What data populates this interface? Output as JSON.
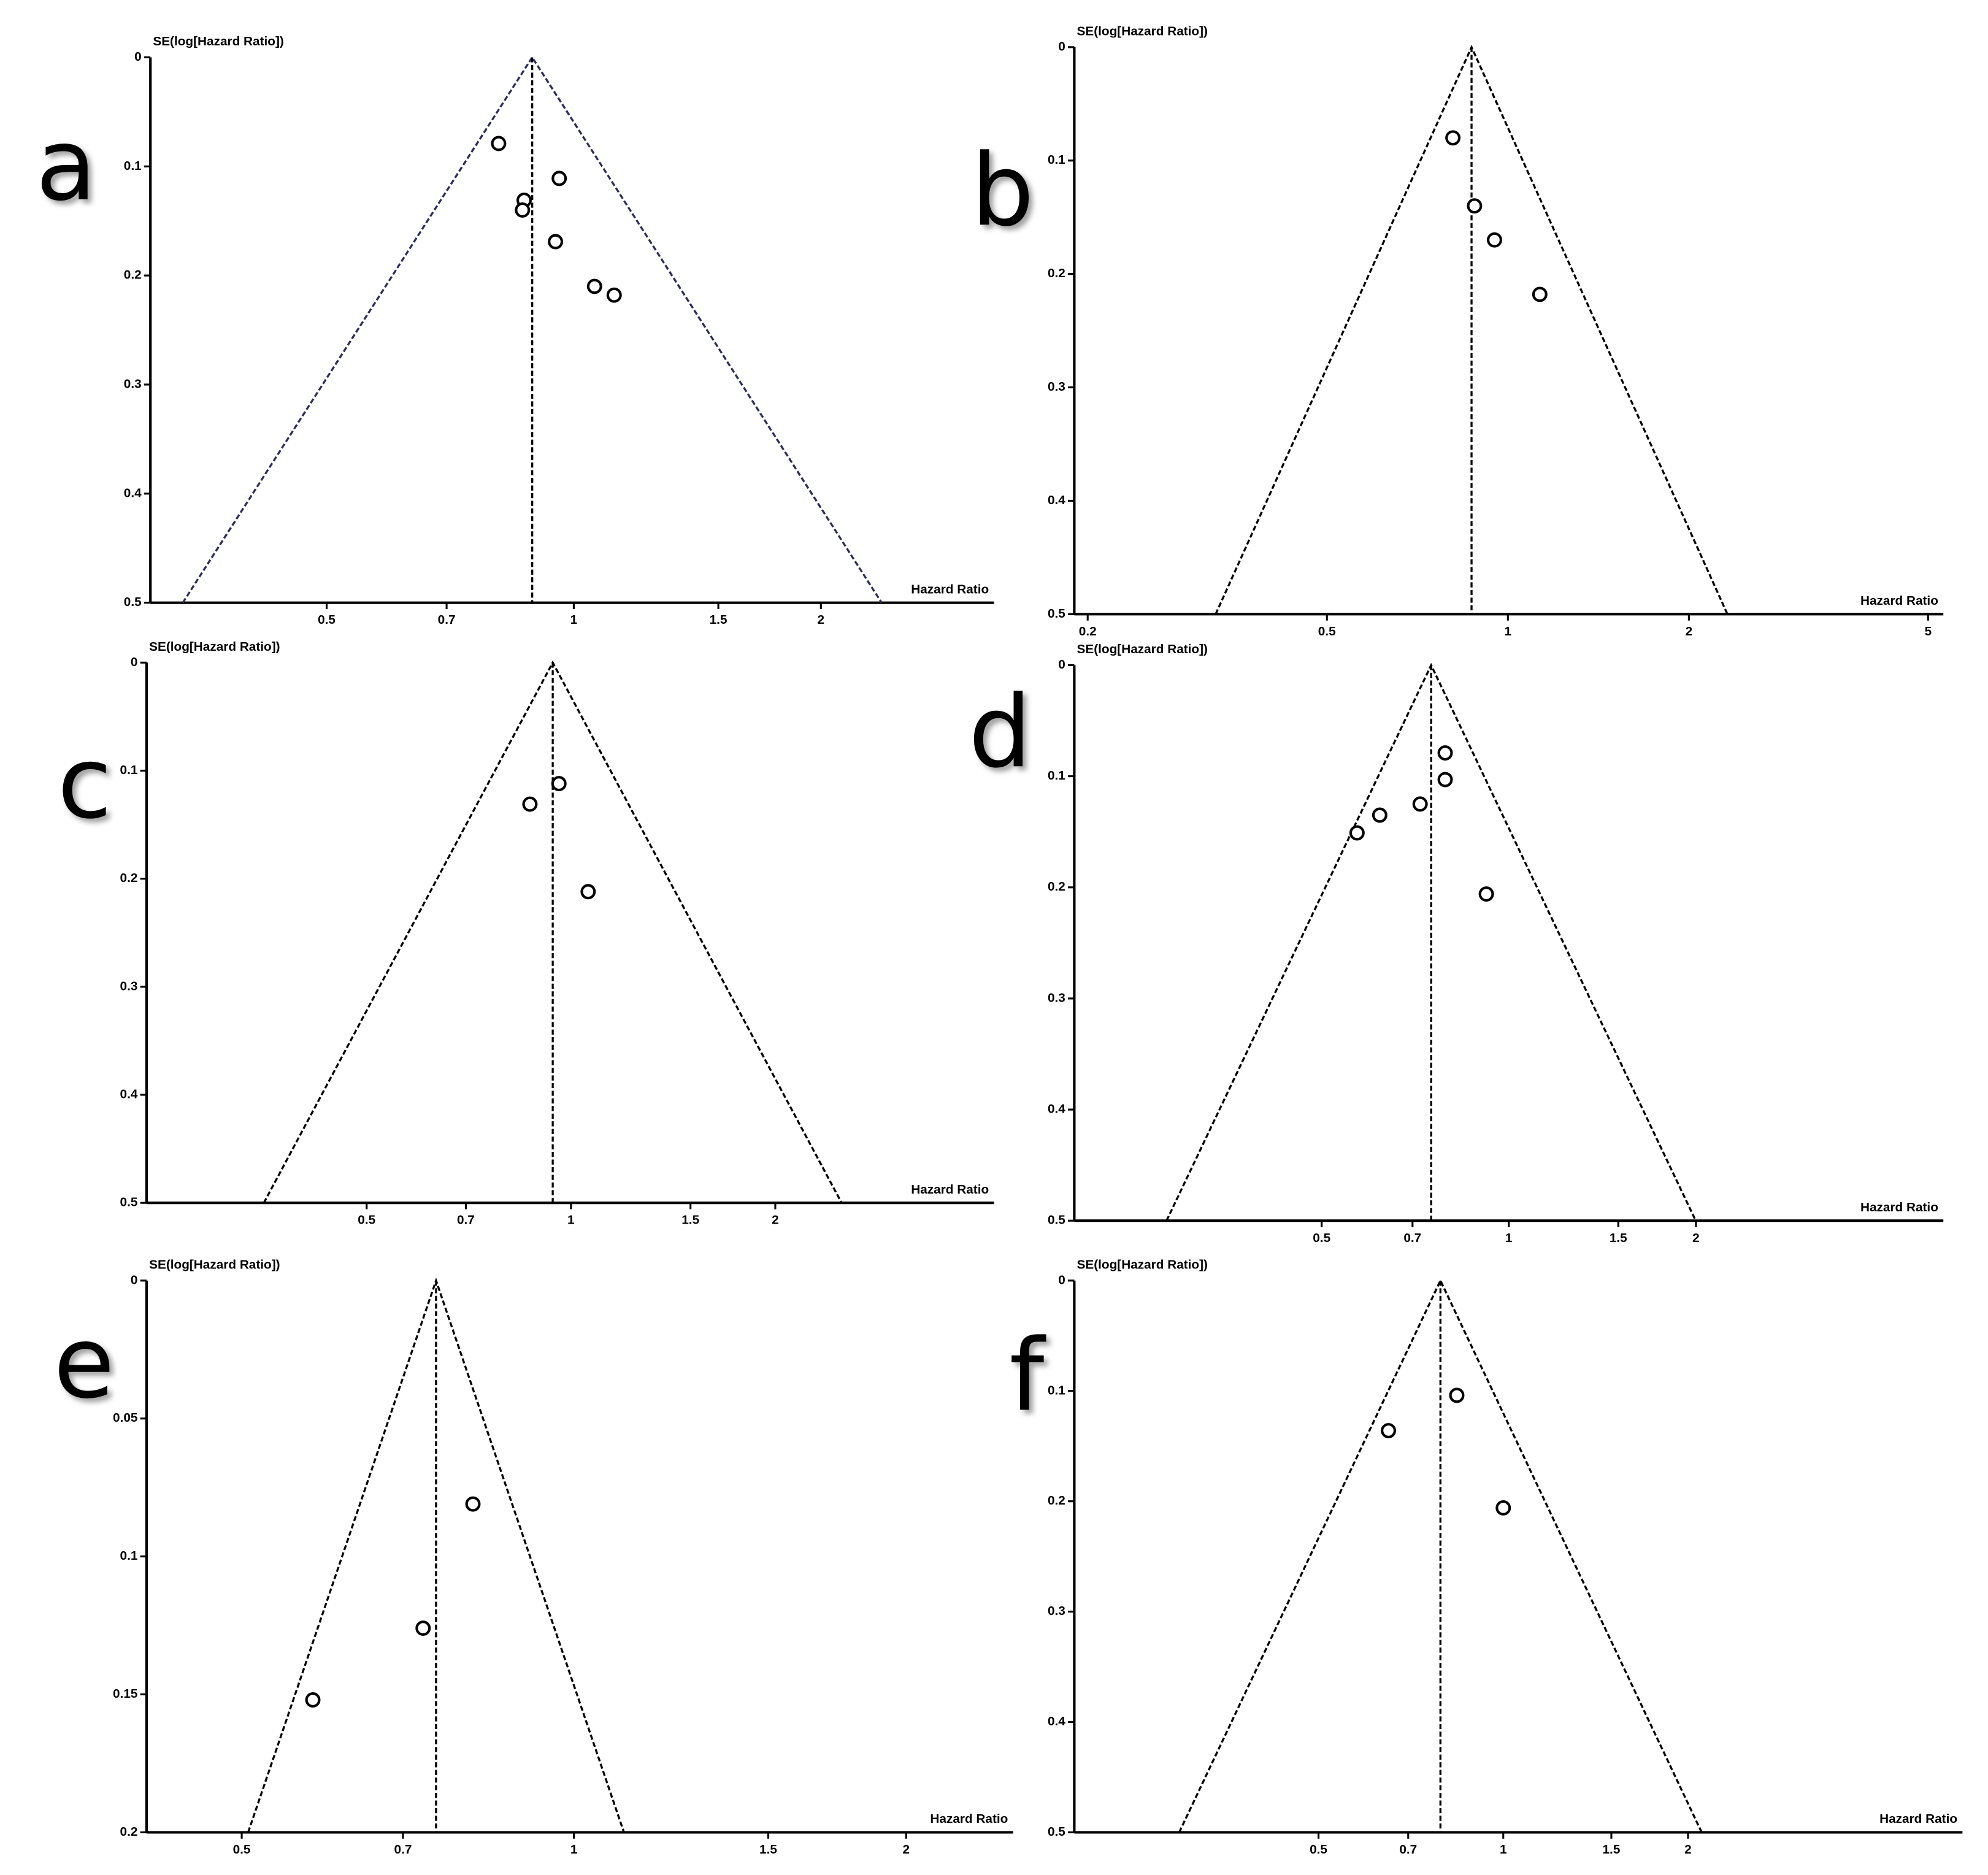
{
  "chart_data": [
    {
      "type": "funnel",
      "panel": "a",
      "y_label": "SE(log[Hazard Ratio])",
      "x_label": "Hazard Ratio",
      "x_log": true,
      "y_inverted": true,
      "xlim": [
        0.305,
        3.25
      ],
      "xticks": [
        0.5,
        0.7,
        1,
        1.5,
        2
      ],
      "ylim": [
        0,
        0.5
      ],
      "yticks": [
        0,
        0.1,
        0.2,
        0.3,
        0.4,
        0.5
      ],
      "summary": 0.89,
      "color": "#2d2d5c",
      "x": [
        0.81,
        0.87,
        0.866,
        0.96,
        0.95,
        1.06,
        1.12
      ],
      "y": [
        0.079,
        0.131,
        0.14,
        0.111,
        0.169,
        0.21,
        0.218
      ]
    },
    {
      "type": "funnel",
      "panel": "b",
      "y_label": "SE(log[Hazard Ratio])",
      "x_label": "Hazard Ratio",
      "x_log": true,
      "y_inverted": true,
      "xlim": [
        0.19,
        5.3
      ],
      "xticks": [
        0.2,
        0.5,
        1,
        2,
        5
      ],
      "ylim": [
        0,
        0.5
      ],
      "yticks": [
        0,
        0.1,
        0.2,
        0.3,
        0.4,
        0.5
      ],
      "summary": 0.87,
      "color": "#000000",
      "x": [
        0.81,
        0.88,
        0.95,
        1.13
      ],
      "y": [
        0.08,
        0.14,
        0.17,
        0.218
      ]
    },
    {
      "type": "funnel",
      "panel": "c",
      "y_label": "SE(log[Hazard Ratio])",
      "x_label": "Hazard Ratio",
      "x_log": true,
      "y_inverted": true,
      "xlim": [
        0.237,
        4.2
      ],
      "xticks": [
        0.5,
        0.7,
        1,
        1.5,
        2
      ],
      "ylim": [
        0,
        0.5
      ],
      "yticks": [
        0,
        0.1,
        0.2,
        0.3,
        0.4,
        0.5
      ],
      "summary": 0.94,
      "color": "#000000",
      "x": [
        0.87,
        0.96,
        1.06
      ],
      "y": [
        0.131,
        0.112,
        0.212
      ]
    },
    {
      "type": "funnel",
      "panel": "d",
      "y_label": "SE(log[Hazard Ratio])",
      "x_label": "Hazard Ratio",
      "x_log": true,
      "y_inverted": true,
      "xlim": [
        0.2,
        5.0
      ],
      "xticks": [
        0.5,
        0.7,
        1,
        1.5,
        2
      ],
      "ylim": [
        0,
        0.5
      ],
      "yticks": [
        0,
        0.1,
        0.2,
        0.3,
        0.4,
        0.5
      ],
      "summary": 0.75,
      "color": "#000000",
      "x": [
        0.79,
        0.79,
        0.72,
        0.62,
        0.57,
        0.92
      ],
      "y": [
        0.079,
        0.103,
        0.125,
        0.135,
        0.151,
        0.206
      ]
    },
    {
      "type": "funnel",
      "panel": "e",
      "y_label": "SE(log[Hazard Ratio])",
      "x_label": "Hazard Ratio",
      "x_log": true,
      "y_inverted": true,
      "xlim": [
        0.41,
        2.5
      ],
      "xticks": [
        0.5,
        0.7,
        1,
        1.5,
        2
      ],
      "ylim": [
        0,
        0.2
      ],
      "yticks": [
        0,
        0.05,
        0.1,
        0.15,
        0.2
      ],
      "summary": 0.75,
      "color": "#000000",
      "x": [
        0.81,
        0.73,
        0.58
      ],
      "y": [
        0.081,
        0.126,
        0.152
      ]
    },
    {
      "type": "funnel",
      "panel": "f",
      "y_label": "SE(log[Hazard Ratio])",
      "x_label": "Hazard Ratio",
      "x_log": true,
      "y_inverted": true,
      "xlim": [
        0.2,
        5.6
      ],
      "xticks": [
        0.5,
        0.7,
        1,
        1.5,
        2
      ],
      "ylim": [
        0,
        0.5
      ],
      "yticks": [
        0,
        0.1,
        0.2,
        0.3,
        0.4,
        0.5
      ],
      "summary": 0.79,
      "color": "#000000",
      "x": [
        0.84,
        0.65,
        1.0
      ],
      "y": [
        0.104,
        0.136,
        0.206
      ]
    }
  ]
}
